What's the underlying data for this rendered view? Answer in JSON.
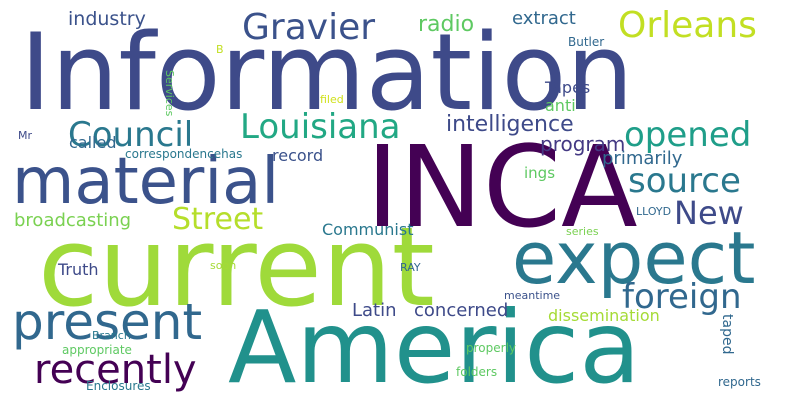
{
  "words": [
    {
      "text": "Information",
      "color": "#3e4a89"
    },
    {
      "text": "INCA",
      "color": "#440154"
    },
    {
      "text": "current",
      "color": "#9fda3a"
    },
    {
      "text": "America",
      "color": "#21918c"
    },
    {
      "text": "material",
      "color": "#3b528b"
    },
    {
      "text": "expect",
      "color": "#2a788e"
    },
    {
      "text": "present",
      "color": "#31688e"
    },
    {
      "text": "Gravier",
      "color": "#3b528b"
    },
    {
      "text": "Orleans",
      "color": "#c2df23"
    },
    {
      "text": "Council",
      "color": "#2a788e"
    },
    {
      "text": "Louisiana",
      "color": "#22a884"
    },
    {
      "text": "opened",
      "color": "#1f9e89"
    },
    {
      "text": "source",
      "color": "#2a788e"
    },
    {
      "text": "New",
      "color": "#3e4a89"
    },
    {
      "text": "foreign",
      "color": "#31688e"
    },
    {
      "text": "recently",
      "color": "#440154"
    },
    {
      "text": "Street",
      "color": "#b5de2b"
    },
    {
      "text": "intelligence",
      "color": "#3e4a89"
    },
    {
      "text": "program",
      "color": "#443983"
    },
    {
      "text": "primarily",
      "color": "#31688e"
    },
    {
      "text": "industry",
      "color": "#3b528b"
    },
    {
      "text": "radio",
      "color": "#5ec962"
    },
    {
      "text": "extract",
      "color": "#31688e"
    },
    {
      "text": "Tapes",
      "color": "#3e4a89"
    },
    {
      "text": "anti",
      "color": "#5ec962"
    },
    {
      "text": "called",
      "color": "#31688e"
    },
    {
      "text": "record",
      "color": "#3b528b"
    },
    {
      "text": "ings",
      "color": "#5ec962"
    },
    {
      "text": "broadcasting",
      "color": "#7ad151"
    },
    {
      "text": "Communist",
      "color": "#2a788e"
    },
    {
      "text": "Latin",
      "color": "#3e4a89"
    },
    {
      "text": "concerned",
      "color": "#3e4a89"
    },
    {
      "text": "dissemination",
      "color": "#a5db36"
    },
    {
      "text": "Truth",
      "color": "#3e4a89"
    },
    {
      "text": "correspondencehas",
      "color": "#2a788e"
    },
    {
      "text": "Mr",
      "color": "#3e4a89"
    },
    {
      "text": "Services",
      "color": "#5ec962"
    },
    {
      "text": "B",
      "color": "#c2df23"
    },
    {
      "text": "Butler",
      "color": "#31688e"
    },
    {
      "text": "filed",
      "color": "#d0e11c"
    },
    {
      "text": "LLOYD",
      "color": "#31688e"
    },
    {
      "text": "series",
      "color": "#7ad151"
    },
    {
      "text": "RAY",
      "color": "#31688e"
    },
    {
      "text": "soon",
      "color": "#a5db36"
    },
    {
      "text": "meantime",
      "color": "#3b528b"
    },
    {
      "text": "Branch",
      "color": "#2a788e"
    },
    {
      "text": "appropriate",
      "color": "#5ec962"
    },
    {
      "text": "properly",
      "color": "#5ec962"
    },
    {
      "text": "taped",
      "color": "#31688e"
    },
    {
      "text": "folders",
      "color": "#5ec962"
    },
    {
      "text": "Enclosures",
      "color": "#2a788e"
    },
    {
      "text": "reports",
      "color": "#31688e"
    }
  ]
}
